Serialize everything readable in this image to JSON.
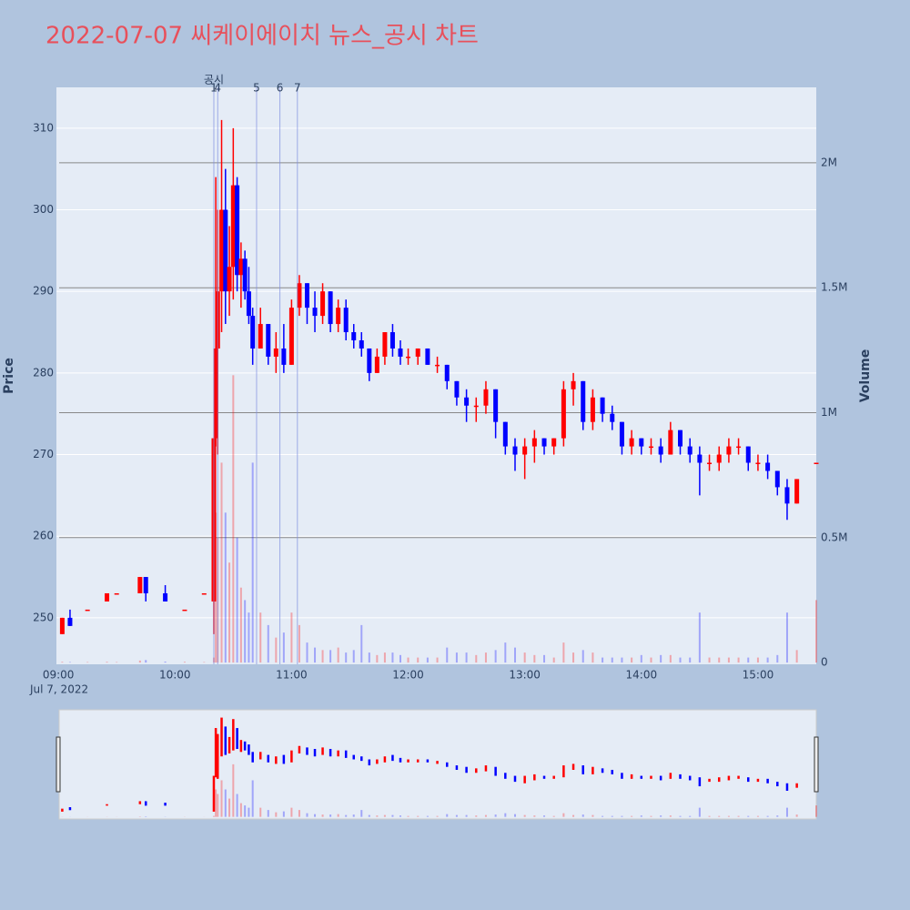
{
  "chart_data": {
    "type": "candlestick",
    "title": "2022-07-07 씨케이에이치 뉴스_공시 차트",
    "y_label": "Price",
    "y2_label": "Volume",
    "x_date_label": "Jul 7, 2022",
    "increasing_color": "#ff0000",
    "decreasing_color": "#0000ff",
    "xlim": [
      "2022-07-07 08:59",
      "2022-07-07 15:30"
    ],
    "xticks": [
      {
        "value": "2022-07-07 09:00",
        "label": "09:00"
      },
      {
        "value": "2022-07-07 10:00",
        "label": "10:00"
      },
      {
        "value": "2022-07-07 11:00",
        "label": "11:00"
      },
      {
        "value": "2022-07-07 12:00",
        "label": "12:00"
      },
      {
        "value": "2022-07-07 13:00",
        "label": "13:00"
      },
      {
        "value": "2022-07-07 14:00",
        "label": "14:00"
      },
      {
        "value": "2022-07-07 15:00",
        "label": "15:00"
      }
    ],
    "ylim": [
      244.3,
      315
    ],
    "yticks": [
      250,
      260,
      270,
      280,
      290,
      300,
      310
    ],
    "y2lim": [
      -7000,
      2302000
    ],
    "y2ticks": [
      0,
      {
        "value": 500000,
        "label": "0.5M"
      },
      {
        "value": 1000000,
        "label": "1M"
      },
      {
        "value": 1500000,
        "label": "1.5M"
      },
      {
        "value": 2000000,
        "label": "2M"
      }
    ],
    "grid": true,
    "annotation_title": "공시",
    "annotations": [
      {
        "x": "2022-07-07 10:20",
        "label": "1"
      },
      {
        "x": "2022-07-07 10:22",
        "label": "4"
      },
      {
        "x": "2022-07-07 10:42",
        "label": "5"
      },
      {
        "x": "2022-07-07 10:54",
        "label": "6"
      },
      {
        "x": "2022-07-07 11:03",
        "label": "7"
      }
    ],
    "x": [
      "2022-07-07 09:02",
      "2022-07-07 09:06",
      "2022-07-07 09:15",
      "2022-07-07 09:25",
      "2022-07-07 09:30",
      "2022-07-07 09:42",
      "2022-07-07 09:45",
      "2022-07-07 09:55",
      "2022-07-07 10:05",
      "2022-07-07 10:15",
      "2022-07-07 10:20",
      "2022-07-07 10:21",
      "2022-07-07 10:22",
      "2022-07-07 10:24",
      "2022-07-07 10:26",
      "2022-07-07 10:28",
      "2022-07-07 10:30",
      "2022-07-07 10:32",
      "2022-07-07 10:34",
      "2022-07-07 10:36",
      "2022-07-07 10:38",
      "2022-07-07 10:40",
      "2022-07-07 10:44",
      "2022-07-07 10:48",
      "2022-07-07 10:52",
      "2022-07-07 10:56",
      "2022-07-07 11:00",
      "2022-07-07 11:04",
      "2022-07-07 11:08",
      "2022-07-07 11:12",
      "2022-07-07 11:16",
      "2022-07-07 11:20",
      "2022-07-07 11:24",
      "2022-07-07 11:28",
      "2022-07-07 11:32",
      "2022-07-07 11:36",
      "2022-07-07 11:40",
      "2022-07-07 11:44",
      "2022-07-07 11:48",
      "2022-07-07 11:52",
      "2022-07-07 11:56",
      "2022-07-07 12:00",
      "2022-07-07 12:05",
      "2022-07-07 12:10",
      "2022-07-07 12:15",
      "2022-07-07 12:20",
      "2022-07-07 12:25",
      "2022-07-07 12:30",
      "2022-07-07 12:35",
      "2022-07-07 12:40",
      "2022-07-07 12:45",
      "2022-07-07 12:50",
      "2022-07-07 12:55",
      "2022-07-07 13:00",
      "2022-07-07 13:05",
      "2022-07-07 13:10",
      "2022-07-07 13:15",
      "2022-07-07 13:20",
      "2022-07-07 13:25",
      "2022-07-07 13:30",
      "2022-07-07 13:35",
      "2022-07-07 13:40",
      "2022-07-07 13:45",
      "2022-07-07 13:50",
      "2022-07-07 13:55",
      "2022-07-07 14:00",
      "2022-07-07 14:05",
      "2022-07-07 14:10",
      "2022-07-07 14:15",
      "2022-07-07 14:20",
      "2022-07-07 14:25",
      "2022-07-07 14:30",
      "2022-07-07 14:35",
      "2022-07-07 14:40",
      "2022-07-07 14:45",
      "2022-07-07 14:50",
      "2022-07-07 14:55",
      "2022-07-07 15:00",
      "2022-07-07 15:05",
      "2022-07-07 15:10",
      "2022-07-07 15:15",
      "2022-07-07 15:20",
      "2022-07-07 15:30"
    ],
    "open": [
      248,
      250,
      251,
      252,
      253,
      253,
      255,
      253,
      251,
      253,
      252,
      272,
      283,
      290,
      300,
      290,
      293,
      303,
      292,
      294,
      290,
      287,
      283,
      286,
      282,
      283,
      281,
      288,
      291,
      288,
      287,
      290,
      286,
      288,
      285,
      284,
      283,
      280,
      282,
      285,
      283,
      282,
      282,
      283,
      281,
      281,
      279,
      277,
      276,
      276,
      278,
      274,
      271,
      270,
      271,
      272,
      271,
      272,
      278,
      279,
      274,
      277,
      275,
      274,
      271,
      272,
      271,
      271,
      270,
      273,
      271,
      270,
      269,
      269,
      270,
      271,
      271,
      269,
      269,
      268,
      266,
      264,
      269
    ],
    "high": [
      250,
      251,
      251,
      253,
      253,
      255,
      255,
      254,
      251,
      253,
      272,
      304,
      300,
      311,
      305,
      298,
      310,
      304,
      296,
      295,
      293,
      288,
      288,
      286,
      285,
      286,
      289,
      292,
      291,
      290,
      291,
      290,
      289,
      289,
      286,
      285,
      283,
      283,
      285,
      286,
      284,
      283,
      283,
      283,
      282,
      281,
      279,
      278,
      277,
      279,
      278,
      274,
      272,
      272,
      273,
      272,
      272,
      279,
      280,
      279,
      278,
      277,
      276,
      274,
      273,
      272,
      272,
      272,
      274,
      273,
      272,
      271,
      270,
      271,
      272,
      272,
      271,
      270,
      270,
      268,
      267,
      267,
      269
    ],
    "low": [
      248,
      249,
      251,
      252,
      253,
      253,
      252,
      252,
      251,
      253,
      248,
      271,
      270,
      285,
      286,
      287,
      289,
      290,
      288,
      289,
      286,
      281,
      283,
      281,
      280,
      280,
      281,
      287,
      286,
      285,
      286,
      285,
      285,
      284,
      283,
      282,
      279,
      280,
      281,
      282,
      281,
      281,
      281,
      281,
      280,
      278,
      276,
      274,
      274,
      275,
      272,
      270,
      268,
      267,
      269,
      270,
      270,
      271,
      276,
      273,
      273,
      274,
      273,
      270,
      270,
      270,
      270,
      269,
      270,
      270,
      269,
      265,
      268,
      268,
      269,
      270,
      268,
      268,
      267,
      265,
      262,
      264,
      269
    ],
    "close": [
      250,
      249,
      251,
      253,
      253,
      255,
      253,
      252,
      251,
      253,
      272,
      283,
      290,
      300,
      290,
      293,
      303,
      292,
      294,
      290,
      287,
      283,
      286,
      282,
      283,
      281,
      288,
      291,
      288,
      287,
      290,
      286,
      288,
      285,
      284,
      283,
      280,
      282,
      285,
      283,
      282,
      282,
      283,
      281,
      281,
      279,
      277,
      276,
      276,
      278,
      274,
      271,
      270,
      271,
      272,
      271,
      272,
      278,
      279,
      274,
      277,
      275,
      274,
      271,
      272,
      271,
      271,
      270,
      273,
      271,
      270,
      269,
      269,
      270,
      271,
      271,
      269,
      269,
      268,
      266,
      264,
      267,
      269
    ],
    "volume": [
      3000,
      2000,
      2000,
      3000,
      2000,
      8000,
      10000,
      4000,
      3000,
      2000,
      20000,
      600000,
      500000,
      800000,
      600000,
      400000,
      1150000,
      500000,
      300000,
      250000,
      200000,
      800000,
      200000,
      150000,
      100000,
      120000,
      200000,
      150000,
      80000,
      60000,
      50000,
      50000,
      60000,
      40000,
      50000,
      150000,
      40000,
      30000,
      40000,
      40000,
      30000,
      20000,
      20000,
      20000,
      20000,
      60000,
      40000,
      40000,
      30000,
      40000,
      50000,
      80000,
      60000,
      40000,
      30000,
      30000,
      20000,
      80000,
      40000,
      50000,
      40000,
      20000,
      20000,
      20000,
      20000,
      30000,
      20000,
      30000,
      30000,
      20000,
      20000,
      200000,
      20000,
      20000,
      20000,
      20000,
      20000,
      20000,
      20000,
      30000,
      200000,
      50000,
      250000
    ]
  }
}
